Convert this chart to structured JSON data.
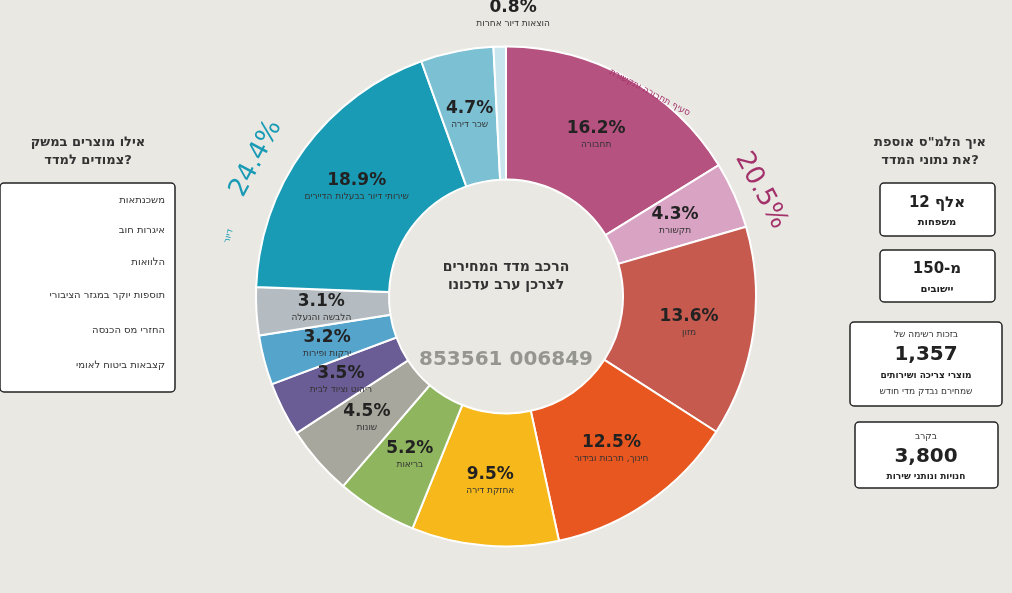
{
  "chart_data": {
    "type": "donut",
    "title": "הרכב מדד המחירים לצרכן ערב עדכונו",
    "categories": [
      "תחבורה",
      "תקשורת",
      "מזון",
      "חינוך, תרבות ובידור",
      "אחזקת דירה",
      "בריאות",
      "שונות",
      "ריהוט וציוד לבית",
      "ירקות ופירות",
      "הלבשה והנעלה",
      "שירותי דיור בבעלות הדיירים",
      "שכר דירה",
      "הוצאות דיור אחרות"
    ],
    "values": [
      16.2,
      4.3,
      13.6,
      12.5,
      9.5,
      5.2,
      4.5,
      3.5,
      3.2,
      3.1,
      18.9,
      4.7,
      0.8
    ],
    "value_labels": [
      "16.2%",
      "4.3%",
      "13.6%",
      "12.5%",
      "9.5%",
      "5.2%",
      "4.5%",
      "3.5%",
      "3.2%",
      "3.1%",
      "18.9%",
      "4.7%",
      "0.8%"
    ],
    "colors": [
      "#b5527f",
      "#d9a3c3",
      "#c65a4f",
      "#e8571f",
      "#f6b81a",
      "#8fb55e",
      "#a8a79d",
      "#6a5c94",
      "#55a4cc",
      "#b5bcc1",
      "#1a9bb5",
      "#7cc0d4",
      "#c9e6ef"
    ],
    "annotations": [
      "853561 006849",
      "20.5%",
      "סעיף תחבורה ותקשורת",
      "24.4%",
      "דיור",
      "אילו מוצרים במשק צמודים למדד?",
      "משכנתאות",
      "איגרות חוב",
      "הלוואות",
      "תוספות יוקר במגזר הציבורי",
      "החזרי מס הכנסה",
      "קצבאות ביטוח לאומי",
      "איך הלמ\"ס אוספת את נתוני המדד?",
      "12 אלף",
      "משפחות",
      "מ-150",
      "יישובים",
      "בזכות רשימה של",
      "1,357",
      "מוצרי צריכה ושירותים",
      "שמחירם נבדק מדי חודש",
      "בקרב",
      "3,800",
      "חנויות ונותני שירות"
    ]
  }
}
